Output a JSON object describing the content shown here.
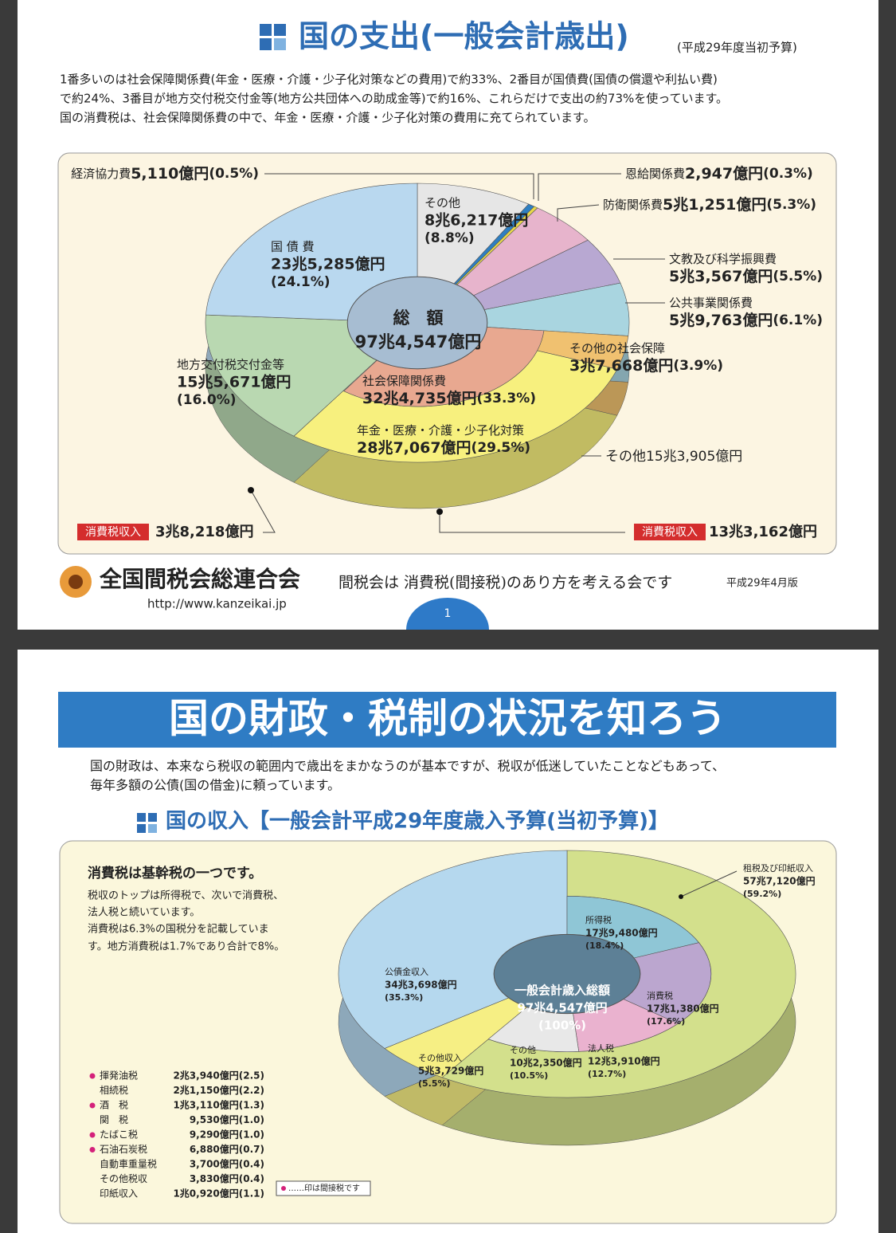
{
  "page1": {
    "title": "国の支出(一般会計歳出)",
    "budget_note": "(平成29年度当初予算)",
    "intro": [
      "1番多いのは社会保障関係費(年金・医療・介護・少子化対策などの費用)で約33%、2番目が国債費(国債の償還や利払い費)",
      "で約24%、3番目が地方交付税交付金等(地方公共団体への助成金等)で約16%、これらだけで支出の約73%を使っています。",
      "国の消費税は、社会保障関係費の中で、年金・医療・介護・少子化対策の費用に充てられています。"
    ],
    "footer": {
      "org": "全国間税会総連合会",
      "url": "http://www.kanzeikai.jp",
      "slogan": "間税会は 消費税(間接税)のあり方を考える会です",
      "edition": "平成29年4月版",
      "page": "1"
    }
  },
  "page2": {
    "heading": "国の財政・税制の状況を知ろう",
    "intro": [
      "国の財政は、本来なら税収の範囲内で歳出をまかなうのが基本ですが、税収が低迷していたことなどもあって、",
      "毎年多額の公債(国の借金)に頼っています。"
    ],
    "note_title": "消費税は基幹税の一つです。",
    "note": [
      "税収のトップは所得税で、次いで消費税、",
      "法人税と続いています。",
      "消費税は6.3%の国税分を記載していま",
      "す。地方消費税は1.7%であり合計で8%。"
    ],
    "tax_table": [
      {
        "name": "揮発油税",
        "amount": "2兆3,940億円(2.5)",
        "indirect": true
      },
      {
        "name": "相続税",
        "amount": "2兆1,150億円(2.2)",
        "indirect": false
      },
      {
        "name": "酒　税",
        "amount": "1兆3,110億円(1.3)",
        "indirect": true
      },
      {
        "name": "関　税",
        "amount": "9,530億円(1.0)",
        "indirect": false
      },
      {
        "name": "たばこ税",
        "amount": "9,290億円(1.0)",
        "indirect": true
      },
      {
        "name": "石油石炭税",
        "amount": "6,880億円(0.7)",
        "indirect": true
      },
      {
        "name": "自動車重量税",
        "amount": "3,700億円(0.4)",
        "indirect": false
      },
      {
        "name": "その他税収",
        "amount": "3,830億円(0.4)",
        "indirect": false
      },
      {
        "name": "印紙収入",
        "amount": "1兆0,920億円(1.1)",
        "indirect": false
      }
    ],
    "legend": "……印は間接税です"
  },
  "chart_data": [
    {
      "type": "pie",
      "title": "国の支出(一般会計歳出)",
      "categories": [
        "その他",
        "経済協力費",
        "恩給関係費",
        "防衛関係費",
        "文教及び科学振興費",
        "公共事業関係費",
        "その他の社会保障",
        "年金・医療・介護・少子化対策",
        "地方交付税交付金等",
        "国 債 費"
      ],
      "amounts": [
        "8兆6,217億円",
        "5,110億円",
        "2,947億円",
        "5兆1,251億円",
        "5兆3,567億円",
        "5兆9,763億円",
        "3兆7,668億円",
        "28兆7,067億円",
        "15兆5,671億円",
        "23兆5,285億円"
      ],
      "values": [
        8.8,
        0.5,
        0.3,
        5.3,
        5.5,
        6.1,
        3.9,
        29.5,
        16.0,
        24.1
      ],
      "value_labels": [
        "(8.8%)",
        "(0.5%)",
        "(0.3%)",
        "(5.3%)",
        "(5.5%)",
        "(6.1%)",
        "(3.9%)",
        "(29.5%)",
        "(16.0%)",
        "(24.1%)"
      ],
      "colors": [
        "#e6e6e6",
        "#2e7fc2",
        "#e8d84a",
        "#e7b4cc",
        "#b8a8d2",
        "#a9d5e0",
        "#f0c170",
        "#f7f07e",
        "#b9d8b1",
        "#b9d8ef"
      ],
      "inner": {
        "categories": [
          "社会保障関係費"
        ],
        "amounts": [
          "32兆4,735億円"
        ],
        "values": [
          33.3
        ],
        "value_labels": [
          "(33.3%)"
        ],
        "colors": [
          "#e8a890"
        ]
      },
      "center": {
        "label": "総　額",
        "amount": "97兆4,547億円"
      },
      "annotations": {
        "other": "その他15兆3,905億円",
        "tag": "消費税収入",
        "tax_left": "3兆8,218億円",
        "tax_right": "13兆3,162億円"
      }
    },
    {
      "type": "pie",
      "title": "国の収入【一般会計平成29年度歳入予算(当初予算)】",
      "categories": [
        "租税及び印紙収入",
        "その他収入",
        "公債金収入"
      ],
      "amounts": [
        "57兆7,120億円",
        "5兆3,729億円",
        "34兆3,698億円"
      ],
      "values": [
        59.2,
        5.5,
        35.3
      ],
      "value_labels": [
        "(59.2%)",
        "(5.5%)",
        "(35.3%)"
      ],
      "colors": [
        "#d3e08c",
        "#f6ef84",
        "#b5d8ee"
      ],
      "inner": {
        "categories": [
          "所得税",
          "消費税",
          "法人税",
          "その他"
        ],
        "amounts": [
          "17兆9,480億円",
          "17兆1,380億円",
          "12兆3,910億円",
          "10兆2,350億円"
        ],
        "values": [
          18.4,
          17.6,
          12.7,
          10.5
        ],
        "value_labels": [
          "(18.4%)",
          "(17.6%)",
          "(12.7%)",
          "(10.5%)"
        ],
        "colors": [
          "#8fc6d6",
          "#bba6cf",
          "#eab2cf",
          "#e8e8e8"
        ]
      },
      "center": {
        "label": "一般会計歳入総額",
        "amount": "97兆4,547億円",
        "value_label": "(100%)"
      }
    }
  ]
}
